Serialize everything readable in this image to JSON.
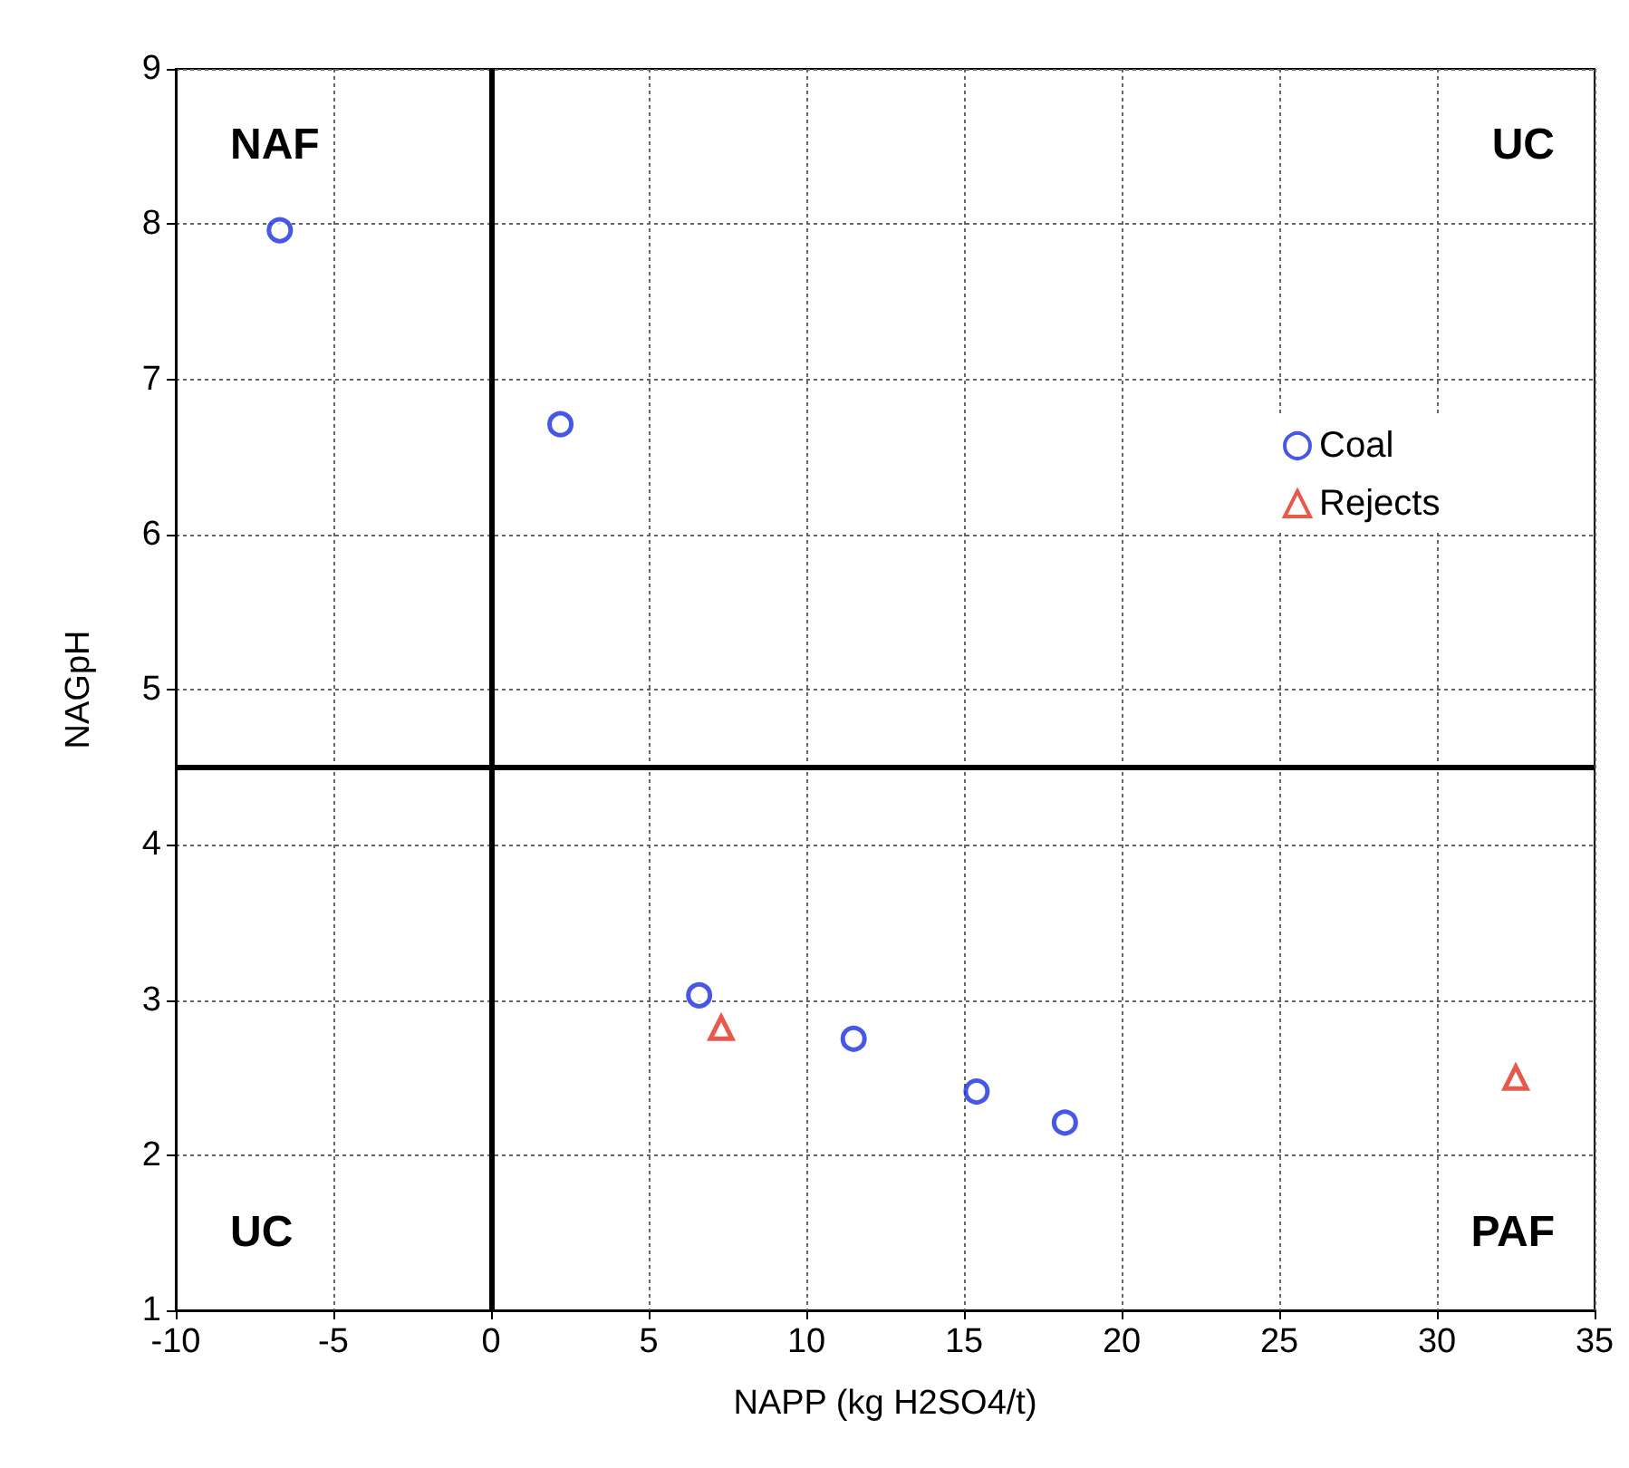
{
  "chart_data": {
    "type": "scatter",
    "xlabel": "NAPP (kg H2SO4/t)",
    "ylabel": "NAGpH",
    "series": [
      {
        "name": "Coal",
        "color": "#1a2ee0",
        "marker": "circle",
        "x": [
          -6.7,
          2.2,
          6.6,
          11.5,
          15.4,
          18.2
        ],
        "values": [
          7.96,
          6.71,
          3.03,
          2.75,
          2.41,
          2.21
        ]
      },
      {
        "name": "Rejects",
        "color": "#e0301e",
        "marker": "triangle",
        "x": [
          7.3,
          32.5
        ],
        "values": [
          2.82,
          2.5
        ]
      }
    ],
    "xlim": [
      -10,
      35
    ],
    "xticks": [
      -10,
      -5,
      0,
      5,
      10,
      15,
      20,
      25,
      30,
      35
    ],
    "ylim": [
      1,
      9
    ],
    "yticks": [
      1,
      2,
      3,
      4,
      5,
      6,
      7,
      8,
      9
    ],
    "ref_lines": [
      {
        "axis": "x",
        "value": 0,
        "color": "#000000"
      },
      {
        "axis": "y",
        "value": 4.5,
        "color": "#000000"
      }
    ],
    "annotations": [
      "NAF",
      "UC",
      "UC",
      "PAF"
    ],
    "grid": true,
    "legend": "right"
  }
}
